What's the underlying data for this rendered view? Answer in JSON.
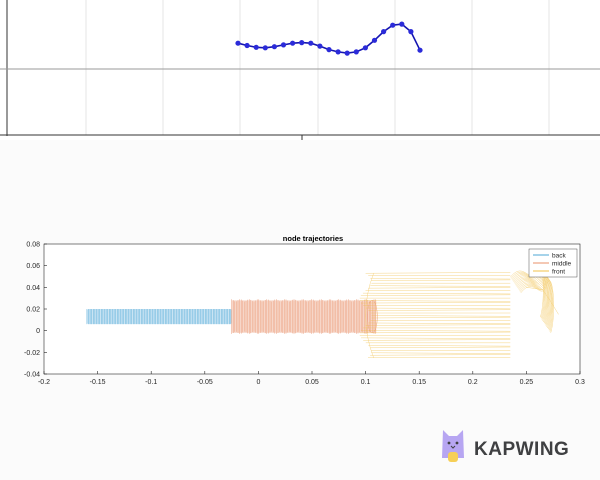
{
  "top_panel": {
    "node_color": "#2b2bd9",
    "line_color": "#1515b0"
  },
  "chart_data": [
    {
      "type": "line",
      "title": "",
      "xlabel": "",
      "ylabel": "",
      "grid": true,
      "series": [
        {
          "color": "#2b2bd9",
          "x": [
            0.0,
            0.05,
            0.1,
            0.15,
            0.2,
            0.25,
            0.3,
            0.35,
            0.4,
            0.45,
            0.5,
            0.55,
            0.6,
            0.65,
            0.7,
            0.75,
            0.8,
            0.85,
            0.9,
            0.95,
            1.0
          ],
          "y": [
            0.6,
            0.56,
            0.53,
            0.52,
            0.54,
            0.57,
            0.6,
            0.61,
            0.6,
            0.55,
            0.49,
            0.45,
            0.43,
            0.45,
            0.52,
            0.65,
            0.8,
            0.91,
            0.93,
            0.8,
            0.48
          ]
        }
      ]
    },
    {
      "type": "line",
      "title": "node trajectories",
      "xlim": [
        -0.2,
        0.3
      ],
      "ylim": [
        -0.04,
        0.08
      ],
      "xticks": [
        "-0.2",
        "-0.15",
        "-0.1",
        "-0.05",
        "0",
        "0.05",
        "0.1",
        "0.15",
        "0.2",
        "0.25",
        "0.3"
      ],
      "yticks": [
        "-0.04",
        "-0.02",
        "0",
        "0.02",
        "0.04",
        "0.06",
        "0.08"
      ],
      "legend_position": "top-right",
      "series": [
        {
          "name": "back",
          "color": "#4da7d6",
          "x_range": [
            -0.16,
            -0.025
          ],
          "y_range": [
            0.006,
            0.02
          ]
        },
        {
          "name": "middle",
          "color": "#e8906a",
          "x_range": [
            -0.025,
            0.11
          ],
          "y_range": [
            -0.002,
            0.028
          ]
        },
        {
          "name": "front",
          "color": "#f0c04a",
          "x_range": [
            0.09,
            0.26
          ],
          "y_range": [
            -0.025,
            0.053
          ]
        }
      ]
    }
  ],
  "watermark": {
    "text": "KAPWING",
    "logo_color": "#b7a6f2",
    "logo_accent": "#f6cf57"
  }
}
